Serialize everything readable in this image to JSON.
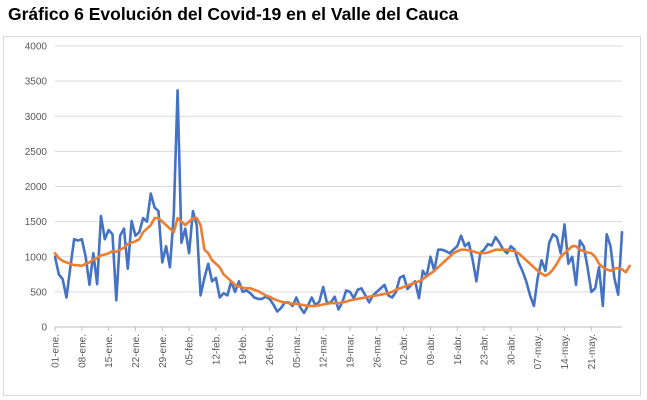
{
  "title": "Gráfico 6 Evolución del Covid-19 en el Valle del Cauca",
  "chart_data": {
    "type": "line",
    "title": "Gráfico 6 Evolución del Covid-19 en el Valle del Cauca",
    "xlabel": "",
    "ylabel": "",
    "ylim": [
      0,
      4000
    ],
    "yticks": [
      0,
      500,
      1000,
      1500,
      2000,
      2500,
      3000,
      3500,
      4000
    ],
    "x_tick_labels": [
      "01-ene.",
      "08-ene.",
      "15-ene.",
      "22-ene.",
      "29-ene.",
      "05-feb.",
      "12-feb.",
      "19-feb.",
      "26-feb.",
      "05-mar.",
      "12-mar.",
      "19-mar.",
      "26-mar.",
      "02-abr.",
      "09-abr.",
      "16-abr.",
      "23-abr.",
      "30-abr.",
      "07-may.",
      "14-may.",
      "21-may."
    ],
    "x_start": "01-ene.",
    "x_step_days": 1,
    "grid": true,
    "legend": "none",
    "colors": {
      "daily": "#4472c4",
      "average": "#ed7d31"
    },
    "series": [
      {
        "values": [
          1000,
          750,
          680,
          420,
          850,
          1250,
          1230,
          1250,
          1000,
          600,
          1050,
          610,
          1580,
          1250,
          1380,
          1320,
          380,
          1300,
          1400,
          830,
          1510,
          1300,
          1350,
          1550,
          1500,
          1900,
          1700,
          1650,
          920,
          1150,
          850,
          1600,
          3370,
          1200,
          1400,
          1050,
          1650,
          1450,
          450,
          700,
          900,
          650,
          700,
          420,
          480,
          450,
          650,
          500,
          650,
          500,
          520,
          480,
          420,
          400,
          400,
          430,
          400,
          320,
          220,
          270,
          350,
          350,
          300,
          420,
          280,
          200,
          300,
          420,
          310,
          360,
          570,
          340,
          350,
          430,
          250,
          350,
          520,
          500,
          410,
          530,
          550,
          450,
          350,
          450,
          500,
          550,
          600,
          450,
          420,
          500,
          700,
          730,
          540,
          600,
          650,
          410,
          800,
          720,
          1000,
          800,
          1100,
          1100,
          1080,
          1050,
          1100,
          1150,
          1300,
          1150,
          1200,
          960,
          650,
          1050,
          1100,
          1180,
          1160,
          1280,
          1200,
          1100,
          1050,
          1150,
          1100,
          920,
          800,
          650,
          450,
          300,
          700,
          950,
          800,
          1200,
          1320,
          1280,
          1050,
          1460,
          900,
          1000,
          600,
          1230,
          1150,
          850,
          500,
          550,
          850,
          300,
          1320,
          1150,
          700,
          460,
          1350
        ]
      },
      {
        "values": [
          1050,
          980,
          940,
          920,
          900,
          880,
          880,
          870,
          900,
          920,
          960,
          980,
          1020,
          1030,
          1050,
          1080,
          1070,
          1100,
          1130,
          1180,
          1200,
          1220,
          1250,
          1350,
          1400,
          1450,
          1550,
          1550,
          1500,
          1450,
          1400,
          1350,
          1550,
          1500,
          1450,
          1500,
          1550,
          1550,
          1450,
          1100,
          1050,
          950,
          900,
          850,
          750,
          700,
          650,
          600,
          580,
          560,
          550,
          550,
          530,
          510,
          480,
          450,
          430,
          400,
          380,
          360,
          350,
          340,
          330,
          330,
          320,
          310,
          300,
          300,
          300,
          310,
          320,
          330,
          340,
          340,
          340,
          350,
          360,
          380,
          390,
          400,
          410,
          420,
          430,
          440,
          450,
          460,
          470,
          480,
          500,
          530,
          550,
          570,
          590,
          610,
          630,
          650,
          680,
          720,
          760,
          800,
          850,
          900,
          950,
          1000,
          1050,
          1080,
          1100,
          1100,
          1090,
          1080,
          1060,
          1050,
          1050,
          1060,
          1080,
          1100,
          1100,
          1100,
          1100,
          1090,
          1080,
          1050,
          1000,
          950,
          900,
          850,
          800,
          760,
          730,
          760,
          820,
          900,
          1000,
          1050,
          1100,
          1150,
          1150,
          1100,
          1080,
          1060,
          1050,
          1000,
          900,
          850,
          820,
          800,
          830,
          840,
          820,
          780,
          870
        ]
      }
    ]
  }
}
